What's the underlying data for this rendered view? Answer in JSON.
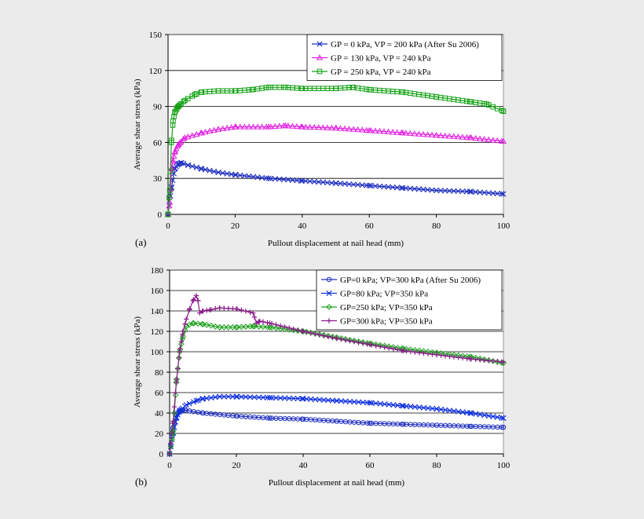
{
  "chart_data": [
    {
      "panel_label": "(a)",
      "type": "line",
      "xlabel": "Pullout displacement at nail head (mm)",
      "ylabel": "Average shear stress (kPa)",
      "xlim": [
        0,
        100
      ],
      "ylim": [
        0,
        150
      ],
      "xticks": [
        0,
        20,
        40,
        60,
        80,
        100
      ],
      "yticks": [
        0,
        30,
        60,
        90,
        120,
        150
      ],
      "grid": "horizontal",
      "legend_position": "top-right",
      "series": [
        {
          "name": "GP = 0 kPa, VP = 200 kPa (After Su 2006)",
          "color": "#2030c0",
          "marker": "x",
          "x": [
            0,
            1,
            2,
            3,
            4,
            6,
            10,
            15,
            20,
            30,
            40,
            50,
            60,
            70,
            80,
            90,
            100
          ],
          "y": [
            0,
            22,
            38,
            42,
            43,
            41,
            38,
            35,
            33,
            30,
            28,
            26,
            24,
            22,
            20,
            19,
            17
          ]
        },
        {
          "name": "GP = 130 kPa, VP = 240 kPa",
          "color": "#e020e0",
          "marker": "triangle",
          "x": [
            0,
            0.5,
            1,
            1.5,
            2,
            3,
            5,
            10,
            15,
            20,
            30,
            35,
            40,
            50,
            60,
            70,
            80,
            90,
            100
          ],
          "y": [
            0,
            10,
            38,
            45,
            52,
            58,
            64,
            68,
            71,
            73,
            73,
            74,
            73,
            72,
            70,
            68,
            66,
            64,
            61
          ]
        },
        {
          "name": "GP = 250 kPa, VP = 240 kPa",
          "color": "#10a010",
          "marker": "square",
          "x": [
            0,
            0.5,
            1,
            1.5,
            2,
            3,
            5,
            8,
            10,
            15,
            20,
            25,
            30,
            35,
            40,
            50,
            55,
            60,
            70,
            80,
            90,
            95,
            100
          ],
          "y": [
            0,
            20,
            60,
            78,
            85,
            90,
            95,
            100,
            102,
            103,
            103,
            104,
            106,
            106,
            105,
            105,
            106,
            104,
            102,
            98,
            94,
            92,
            86
          ]
        }
      ]
    },
    {
      "panel_label": "(b)",
      "type": "line",
      "xlabel": "Pullout displacement at nail head (mm)",
      "ylabel": "Average shear stress (kPa)",
      "xlim": [
        0,
        100
      ],
      "ylim": [
        0,
        180
      ],
      "xticks": [
        0,
        20,
        40,
        60,
        80,
        100
      ],
      "yticks": [
        0,
        20,
        40,
        60,
        80,
        100,
        120,
        140,
        160,
        180
      ],
      "grid": "horizontal",
      "legend_position": "top-right",
      "series": [
        {
          "name": "GP=0 kPa; VP=300 kPa (After Su 2006)",
          "color": "#2030c0",
          "marker": "circle",
          "x": [
            0,
            1,
            2,
            3,
            4,
            6,
            10,
            20,
            30,
            40,
            50,
            60,
            70,
            80,
            90,
            100
          ],
          "y": [
            0,
            25,
            38,
            42,
            43,
            42,
            40,
            37,
            35,
            34,
            32,
            30,
            29,
            28,
            27,
            26
          ]
        },
        {
          "name": "GP=80 kPa; VP=350 kPa",
          "color": "#1030e0",
          "marker": "x",
          "x": [
            0,
            1,
            2,
            3,
            5,
            8,
            10,
            15,
            20,
            30,
            40,
            50,
            60,
            70,
            80,
            90,
            100
          ],
          "y": [
            0,
            20,
            35,
            42,
            48,
            52,
            54,
            56,
            56,
            55,
            54,
            52,
            50,
            47,
            44,
            40,
            35
          ]
        },
        {
          "name": "GP=250 kPa; VP=350 kPa",
          "color": "#20a020",
          "marker": "diamond",
          "x": [
            0,
            1,
            2,
            3,
            4,
            5,
            7,
            10,
            15,
            20,
            25,
            30,
            40,
            50,
            60,
            70,
            80,
            90,
            100
          ],
          "y": [
            0,
            20,
            70,
            100,
            115,
            125,
            128,
            127,
            124,
            124,
            125,
            124,
            120,
            114,
            108,
            103,
            99,
            95,
            89
          ]
        },
        {
          "name": "GP=300 kPa; VP=350 kPa",
          "color": "#8a1a8a",
          "marker": "plus",
          "x": [
            0,
            1,
            2,
            3,
            4,
            5,
            6,
            7,
            8,
            8.5,
            9,
            10,
            12,
            15,
            20,
            25,
            26,
            27,
            30,
            40,
            50,
            60,
            70,
            80,
            90,
            100
          ],
          "y": [
            0,
            30,
            70,
            100,
            120,
            132,
            142,
            150,
            155,
            150,
            138,
            140,
            141,
            143,
            142,
            138,
            128,
            130,
            128,
            120,
            113,
            107,
            101,
            97,
            93,
            90
          ]
        }
      ]
    }
  ]
}
